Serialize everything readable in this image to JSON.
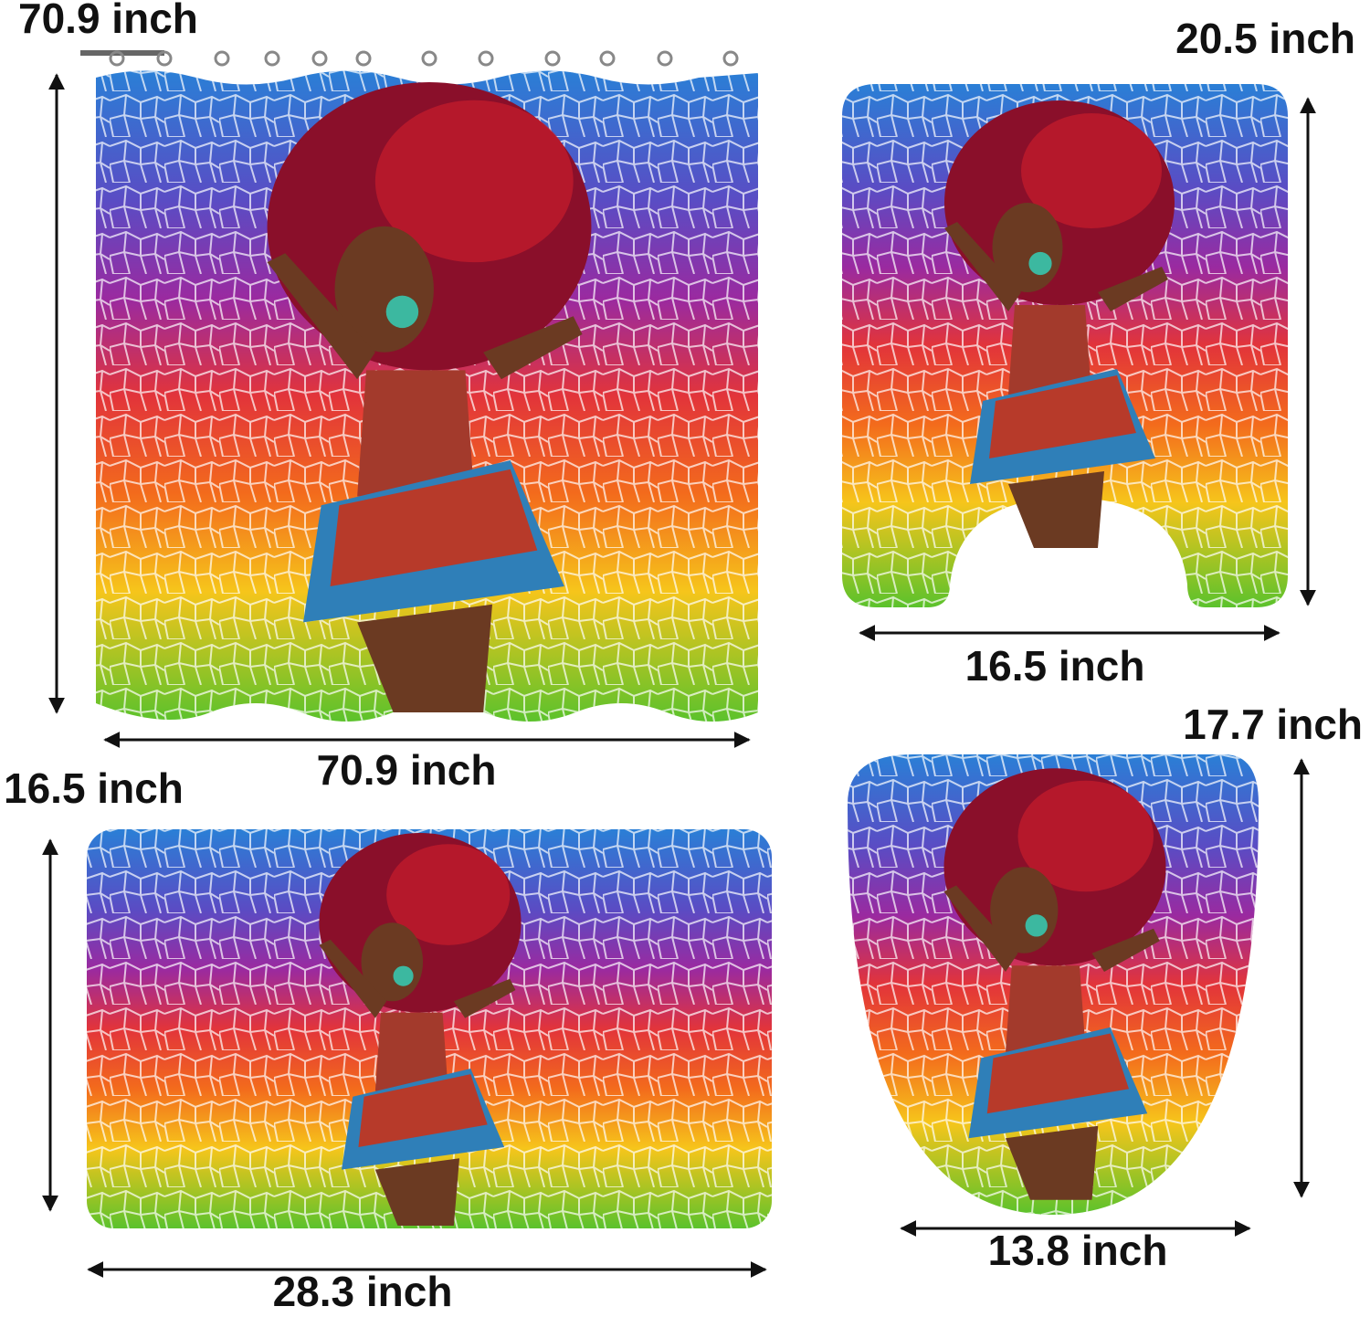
{
  "shower_curtain": {
    "height": "70.9 inch",
    "width": "70.9 inch"
  },
  "contour_mat": {
    "height": "20.5 inch",
    "width": "16.5 inch"
  },
  "bath_mat": {
    "height": "16.5 inch",
    "width": "28.3 inch"
  },
  "lid_cover": {
    "height": "17.7 inch",
    "width": "13.8 inch"
  }
}
